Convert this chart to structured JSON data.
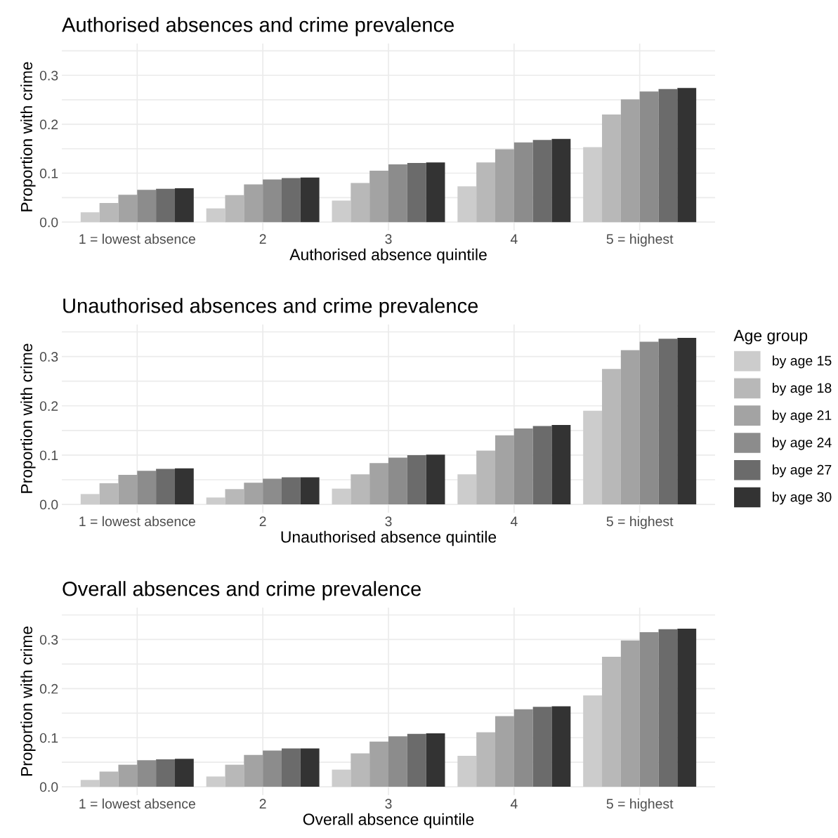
{
  "chart_data": [
    {
      "type": "bar",
      "title": "Authorised absences and crime prevalence",
      "xlabel": "Authorised absence quintile",
      "ylabel": "Proportion with crime",
      "categories": [
        "1 = lowest absence",
        "2",
        "3",
        "4",
        "5 = highest"
      ],
      "ylim": [
        -0.017,
        0.365
      ],
      "yticks": [
        {
          "value": 0,
          "label": "0.0"
        },
        0.1,
        0.2,
        0.3,
        {
          "value": 0.05,
          "label": null
        },
        {
          "value": 0.15,
          "label": null
        },
        {
          "value": 0.25,
          "label": null
        },
        {
          "value": 0.35,
          "label": null
        }
      ],
      "grid": true,
      "series": [
        {
          "color": "#cccccc",
          "values": [
            0.02,
            0.028,
            0.044,
            0.073,
            0.153
          ]
        },
        {
          "color": "#b8b8b8",
          "values": [
            0.039,
            0.055,
            0.08,
            0.122,
            0.22
          ]
        },
        {
          "color": "#a3a3a3",
          "values": [
            0.056,
            0.077,
            0.105,
            0.149,
            0.251
          ]
        },
        {
          "color": "#8c8c8c",
          "values": [
            0.066,
            0.087,
            0.118,
            0.163,
            0.267
          ]
        },
        {
          "color": "#6b6b6b",
          "values": [
            0.068,
            0.09,
            0.121,
            0.168,
            0.272
          ]
        },
        {
          "color": "#333333",
          "values": [
            0.069,
            0.091,
            0.122,
            0.17,
            0.274
          ]
        }
      ]
    },
    {
      "type": "bar",
      "title": "Unauthorised absences and crime prevalence",
      "xlabel": "Unauthorised absence quintile",
      "ylabel": "Proportion with crime",
      "categories": [
        "1 = lowest absence",
        "2",
        "3",
        "4",
        "5 = highest"
      ],
      "ylim": [
        -0.017,
        0.365
      ],
      "yticks": [
        {
          "value": 0,
          "label": "0.0"
        },
        0.1,
        0.2,
        0.3,
        {
          "value": 0.05,
          "label": null
        },
        {
          "value": 0.15,
          "label": null
        },
        {
          "value": 0.25,
          "label": null
        },
        {
          "value": 0.35,
          "label": null
        }
      ],
      "grid": true,
      "legend": "right",
      "legend_title": "Age group",
      "series": [
        {
          "name": "by age 15",
          "color": "#cccccc",
          "values": [
            0.021,
            0.014,
            0.032,
            0.061,
            0.19
          ]
        },
        {
          "name": "by age 18",
          "color": "#b8b8b8",
          "values": [
            0.043,
            0.031,
            0.061,
            0.109,
            0.275
          ]
        },
        {
          "name": "by age 21",
          "color": "#a3a3a3",
          "values": [
            0.06,
            0.044,
            0.084,
            0.14,
            0.313
          ]
        },
        {
          "name": "by age 24",
          "color": "#8c8c8c",
          "values": [
            0.068,
            0.052,
            0.095,
            0.154,
            0.33
          ]
        },
        {
          "name": "by age 27",
          "color": "#6b6b6b",
          "values": [
            0.072,
            0.055,
            0.1,
            0.159,
            0.336
          ]
        },
        {
          "name": "by age 30",
          "color": "#333333",
          "values": [
            0.073,
            0.055,
            0.101,
            0.161,
            0.338
          ]
        }
      ]
    },
    {
      "type": "bar",
      "title": "Overall absences and crime prevalence",
      "xlabel": "Overall absence quintile",
      "ylabel": "Proportion with crime",
      "categories": [
        "1 = lowest absence",
        "2",
        "3",
        "4",
        "5 = highest"
      ],
      "ylim": [
        -0.017,
        0.365
      ],
      "yticks": [
        {
          "value": 0,
          "label": "0.0"
        },
        0.1,
        0.2,
        0.3,
        {
          "value": 0.05,
          "label": null
        },
        {
          "value": 0.15,
          "label": null
        },
        {
          "value": 0.25,
          "label": null
        },
        {
          "value": 0.35,
          "label": null
        }
      ],
      "grid": true,
      "series": [
        {
          "color": "#cccccc",
          "values": [
            0.014,
            0.021,
            0.035,
            0.063,
            0.186
          ]
        },
        {
          "color": "#b8b8b8",
          "values": [
            0.031,
            0.045,
            0.068,
            0.111,
            0.265
          ]
        },
        {
          "color": "#a3a3a3",
          "values": [
            0.045,
            0.065,
            0.092,
            0.144,
            0.298
          ]
        },
        {
          "color": "#8c8c8c",
          "values": [
            0.054,
            0.074,
            0.103,
            0.158,
            0.315
          ]
        },
        {
          "color": "#6b6b6b",
          "values": [
            0.056,
            0.078,
            0.108,
            0.163,
            0.321
          ]
        },
        {
          "color": "#333333",
          "values": [
            0.057,
            0.078,
            0.109,
            0.164,
            0.322
          ]
        }
      ]
    }
  ]
}
